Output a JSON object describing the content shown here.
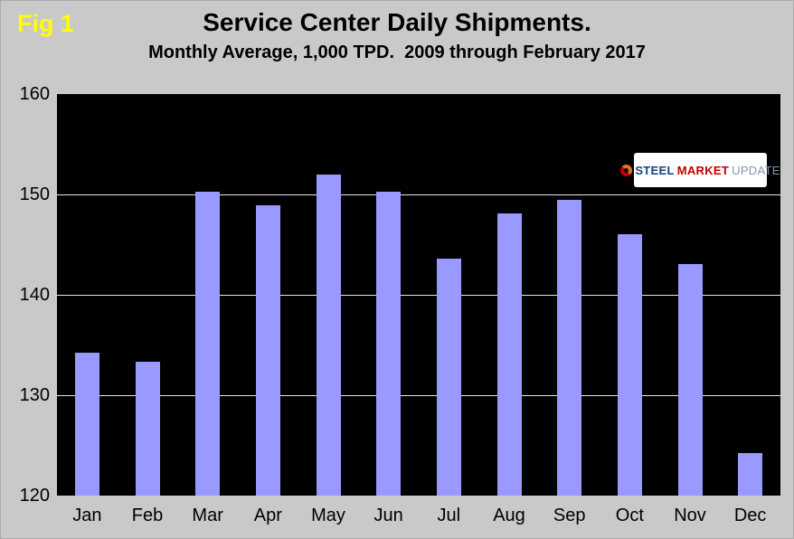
{
  "figure": {
    "fig_label": "Fig 1",
    "title": "Service Center Daily Shipments.",
    "subtitle": "Monthly Average, 1,000 TPD.  2009 through February 2017"
  },
  "logo": {
    "steel": "STEEL",
    "market": "MARKET",
    "update": "UPDATE"
  },
  "chart_data": {
    "type": "bar",
    "title": "Service Center Daily Shipments.",
    "subtitle": "Monthly Average, 1,000 TPD.  2009 through February 2017",
    "categories": [
      "Jan",
      "Feb",
      "Mar",
      "Apr",
      "May",
      "Jun",
      "Jul",
      "Aug",
      "Sep",
      "Oct",
      "Nov",
      "Dec"
    ],
    "values": [
      134.2,
      133.3,
      150.3,
      148.9,
      152.0,
      150.3,
      143.6,
      148.1,
      149.5,
      146.0,
      143.1,
      124.2
    ],
    "xlabel": "",
    "ylabel": "",
    "ylim": [
      120,
      160
    ],
    "yticks": [
      120,
      130,
      140,
      150,
      160
    ],
    "grid": true,
    "legend": "none",
    "colors": {
      "bar": "#9999FF",
      "plot_bg": "#000000",
      "page_bg": "#C9C9C9",
      "gridline": "#FFFFFF",
      "fig_label": "#FFFF00"
    }
  }
}
